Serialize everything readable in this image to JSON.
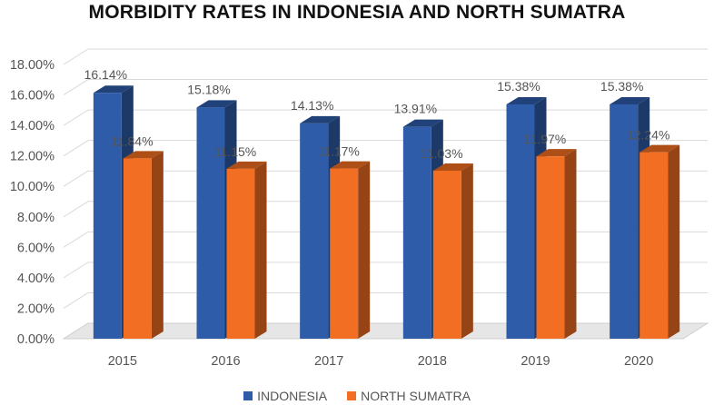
{
  "chart_data": {
    "type": "bar",
    "title": "MORBIDITY RATES IN INDONESIA AND NORTH SUMATRA",
    "xlabel": "",
    "ylabel": "",
    "categories": [
      "2015",
      "2016",
      "2017",
      "2018",
      "2019",
      "2020"
    ],
    "series": [
      {
        "name": "INDONESIA",
        "color": "#2E5CA8",
        "values": [
          16.14,
          15.18,
          14.13,
          13.91,
          15.38,
          15.38
        ],
        "labels": [
          "16.14%",
          "15.18%",
          "14.13%",
          "13.91%",
          "15.38%",
          "15.38%"
        ]
      },
      {
        "name": "NORTH SUMATRA",
        "color": "#F26E22",
        "values": [
          11.84,
          11.15,
          11.17,
          11.03,
          11.97,
          12.24
        ],
        "labels": [
          "11.84%",
          "11.15%",
          "11.17%",
          "11.03%",
          "11.97%",
          "12.24%"
        ]
      }
    ],
    "ylim": [
      0,
      18
    ],
    "yticks": [
      "0.00%",
      "2.00%",
      "4.00%",
      "6.00%",
      "8.00%",
      "10.00%",
      "12.00%",
      "14.00%",
      "16.00%",
      "18.00%"
    ],
    "grid": true,
    "legend": "bottom",
    "style": "3d-column"
  }
}
